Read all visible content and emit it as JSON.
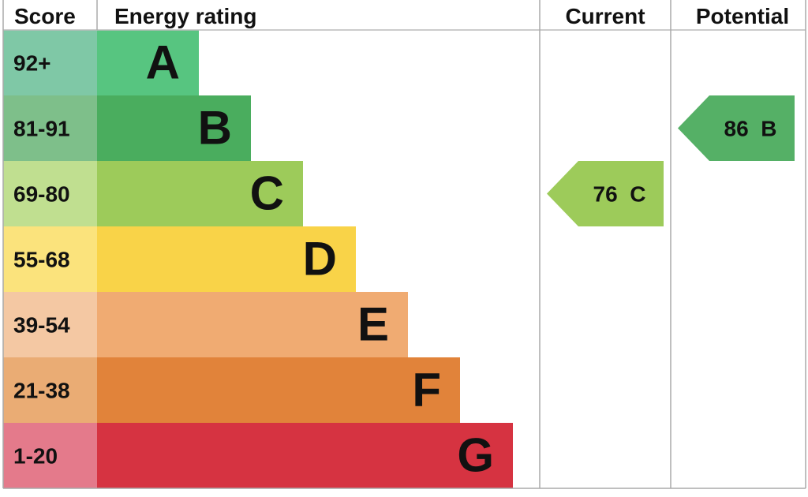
{
  "chart_data": {
    "type": "bar",
    "headers": {
      "score": "Score",
      "rating": "Energy rating",
      "current": "Current",
      "potential": "Potential"
    },
    "bands": [
      {
        "letter": "A",
        "range": "92+",
        "color": "#57c580",
        "score_color": "#7fc8a6"
      },
      {
        "letter": "B",
        "range": "81-91",
        "color": "#4aad5e",
        "score_color": "#7ebf8a"
      },
      {
        "letter": "C",
        "range": "69-80",
        "color": "#9dcb5a",
        "score_color": "#c0df90"
      },
      {
        "letter": "D",
        "range": "55-68",
        "color": "#f9d348",
        "score_color": "#fbe37c"
      },
      {
        "letter": "E",
        "range": "39-54",
        "color": "#f0ab72",
        "score_color": "#f4c8a3"
      },
      {
        "letter": "F",
        "range": "21-38",
        "color": "#e1833a",
        "score_color": "#eaac74"
      },
      {
        "letter": "G",
        "range": "1-20",
        "color": "#d63341",
        "score_color": "#e47a8b"
      }
    ],
    "current": {
      "value": 76,
      "band": "C",
      "label": "76  C",
      "color": "#9dcb5a"
    },
    "potential": {
      "value": 86,
      "band": "B",
      "label": "86  B",
      "color": "#55b066"
    }
  }
}
